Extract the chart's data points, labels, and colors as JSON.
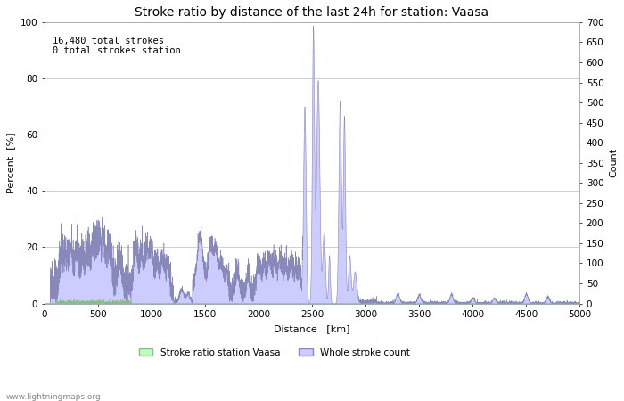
{
  "title": "Stroke ratio by distance of the last 24h for station: Vaasa",
  "xlabel": "Distance   [km]",
  "ylabel_left": "Percent  [%]",
  "ylabel_right": "Count",
  "annotation": "16,480 total strokes\n0 total strokes station",
  "xlim": [
    0,
    5000
  ],
  "ylim_left": [
    0,
    100
  ],
  "ylim_right": [
    0,
    700
  ],
  "yticks_left": [
    0,
    20,
    40,
    60,
    80,
    100
  ],
  "yticks_right": [
    0,
    50,
    100,
    150,
    200,
    250,
    300,
    350,
    400,
    450,
    500,
    550,
    600,
    650,
    700
  ],
  "xticks": [
    0,
    500,
    1000,
    1500,
    2000,
    2500,
    3000,
    3500,
    4000,
    4500,
    5000
  ],
  "background_color": "#ffffff",
  "grid_color": "#c8c8c8",
  "fill_count_color": "#ccccff",
  "fill_count_edge": "#8888bb",
  "fill_ratio_color": "#bbffbb",
  "fill_ratio_edge": "#88bb88",
  "title_fontsize": 10,
  "axis_label_fontsize": 8,
  "tick_fontsize": 7.5,
  "annotation_fontsize": 7.5,
  "watermark": "www.lightningmaps.org",
  "legend_labels": [
    "Stroke ratio station Vaasa",
    "Whole stroke count"
  ],
  "legend_colors": [
    "#bbffbb",
    "#ccccff"
  ],
  "legend_edge_colors": [
    "#88bb88",
    "#8888bb"
  ]
}
